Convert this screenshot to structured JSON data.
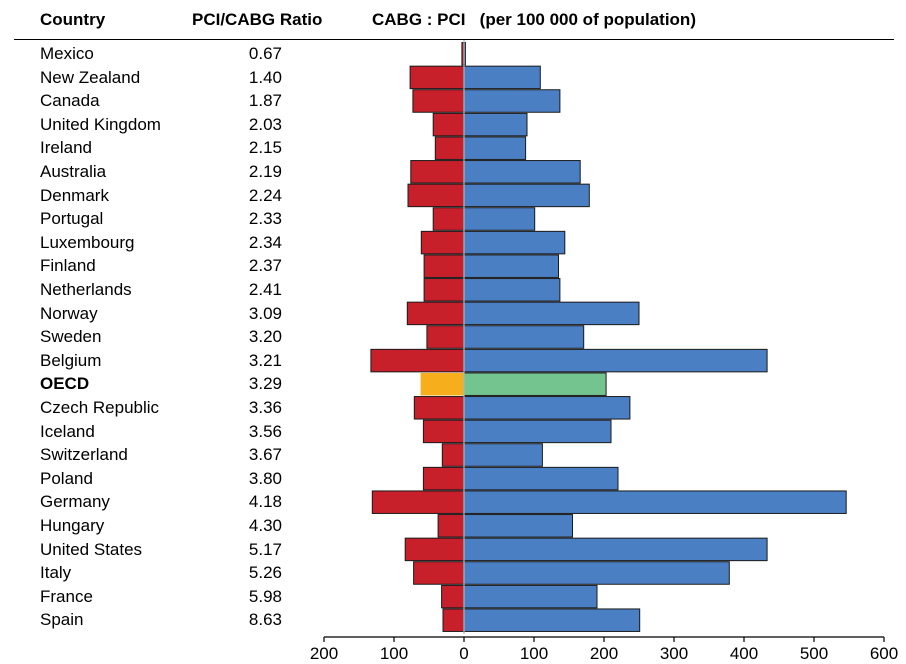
{
  "chart_data": {
    "type": "bar",
    "orientation": "horizontal-diverging",
    "headers": {
      "country": "Country",
      "ratio": "PCI/CABG Ratio",
      "chart": "CABG : PCI   (per 100 000 of population)"
    },
    "x_ticks": [
      "200",
      "100",
      "0",
      "100",
      "200",
      "300",
      "400",
      "500",
      "600"
    ],
    "xlim": [
      -200,
      600
    ],
    "categories": [
      "Mexico",
      "New Zealand",
      "Canada",
      "United Kingdom",
      "Ireland",
      "Australia",
      "Denmark",
      "Portugal",
      "Luxembourg",
      "Finland",
      "Netherlands",
      "Norway",
      "Sweden",
      "Belgium",
      "OECD",
      "Czech Republic",
      "Iceland",
      "Switzerland",
      "Poland",
      "Germany",
      "Hungary",
      "United States",
      "Italy",
      "France",
      "Spain"
    ],
    "ratios": [
      "0.67",
      "1.40",
      "1.87",
      "2.03",
      "2.15",
      "2.19",
      "2.24",
      "2.33",
      "2.34",
      "2.37",
      "2.41",
      "3.09",
      "3.20",
      "3.21",
      "3.29",
      "3.36",
      "3.56",
      "3.67",
      "3.80",
      "4.18",
      "4.30",
      "5.17",
      "5.26",
      "5.98",
      "8.63"
    ],
    "highlight": "OECD",
    "series": [
      {
        "key": "cabg",
        "direction": "left",
        "values": [
          3,
          77,
          73,
          44,
          41,
          76,
          80,
          44,
          61,
          57,
          57,
          81,
          53,
          133,
          62,
          71,
          58,
          31,
          58,
          131,
          37,
          84,
          72,
          32,
          30
        ]
      },
      {
        "key": "pci",
        "direction": "right",
        "values": [
          2,
          109,
          137,
          90,
          88,
          166,
          179,
          101,
          144,
          135,
          137,
          250,
          171,
          433,
          203,
          237,
          210,
          112,
          220,
          546,
          155,
          433,
          379,
          190,
          251
        ]
      }
    ],
    "colors": {
      "cabg": "#c8202a",
      "pci": "#4a7fc4",
      "cabg_highlight": "#f7ae1d",
      "pci_highlight": "#73c48f",
      "outline": "#1a1a1a"
    },
    "grid": false
  }
}
